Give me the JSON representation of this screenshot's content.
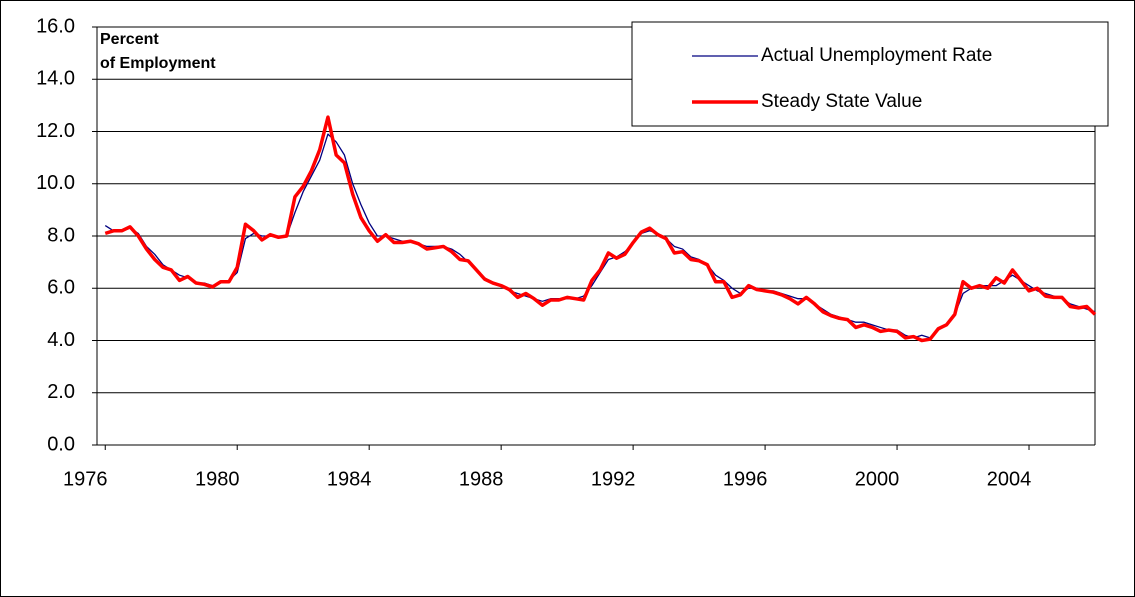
{
  "chart_data": {
    "type": "line",
    "ylabel": [
      "Percent",
      "of Employment"
    ],
    "x": [
      1976,
      1976.25,
      1976.5,
      1976.75,
      1977,
      1977.25,
      1977.5,
      1977.75,
      1978,
      1978.25,
      1978.5,
      1978.75,
      1979,
      1979.25,
      1979.5,
      1979.75,
      1980,
      1980.25,
      1980.5,
      1980.75,
      1981,
      1981.25,
      1981.5,
      1981.75,
      1982,
      1982.25,
      1982.5,
      1982.75,
      1983,
      1983.25,
      1983.5,
      1983.75,
      1984,
      1984.25,
      1984.5,
      1984.75,
      1985,
      1985.25,
      1985.5,
      1985.75,
      1986,
      1986.25,
      1986.5,
      1986.75,
      1987,
      1987.25,
      1987.5,
      1987.75,
      1988,
      1988.25,
      1988.5,
      1988.75,
      1989,
      1989.25,
      1989.5,
      1989.75,
      1990,
      1990.25,
      1990.5,
      1990.75,
      1991,
      1991.25,
      1991.5,
      1991.75,
      1992,
      1992.25,
      1992.5,
      1992.75,
      1993,
      1993.25,
      1993.5,
      1993.75,
      1994,
      1994.25,
      1994.5,
      1994.75,
      1995,
      1995.25,
      1995.5,
      1995.75,
      1996,
      1996.25,
      1996.5,
      1996.75,
      1997,
      1997.25,
      1997.5,
      1997.75,
      1998,
      1998.25,
      1998.5,
      1998.75,
      1999,
      1999.25,
      1999.5,
      1999.75,
      2000,
      2000.25,
      2000.5,
      2000.75,
      2001,
      2001.25,
      2001.5,
      2001.75,
      2002,
      2002.25,
      2002.5,
      2002.75,
      2003,
      2003.25,
      2003.5,
      2003.75,
      2004,
      2004.25,
      2004.5,
      2004.75,
      2005,
      2005.25,
      2005.5,
      2005.75,
      2006
    ],
    "series": [
      {
        "name": "Actual Unemployment Rate",
        "color": "#000080",
        "width": 1.3,
        "values": [
          8.4,
          8.2,
          8.2,
          8.3,
          8.1,
          7.6,
          7.3,
          6.9,
          6.7,
          6.5,
          6.4,
          6.2,
          6.2,
          6.1,
          6.2,
          6.3,
          6.6,
          7.9,
          8.1,
          8.0,
          8.0,
          8.0,
          8.0,
          8.9,
          9.7,
          10.3,
          10.9,
          11.9,
          11.6,
          11.1,
          10.0,
          9.2,
          8.5,
          8.0,
          8.0,
          7.9,
          7.8,
          7.8,
          7.7,
          7.6,
          7.6,
          7.6,
          7.5,
          7.3,
          7.0,
          6.7,
          6.4,
          6.2,
          6.1,
          5.9,
          5.8,
          5.7,
          5.6,
          5.5,
          5.6,
          5.6,
          5.6,
          5.6,
          5.7,
          6.1,
          6.6,
          7.1,
          7.2,
          7.4,
          7.7,
          8.1,
          8.2,
          8.1,
          7.9,
          7.6,
          7.5,
          7.2,
          7.1,
          6.9,
          6.5,
          6.3,
          6.0,
          5.8,
          6.0,
          6.0,
          5.9,
          5.9,
          5.8,
          5.7,
          5.6,
          5.6,
          5.4,
          5.2,
          5.0,
          4.9,
          4.8,
          4.7,
          4.7,
          4.6,
          4.5,
          4.4,
          4.4,
          4.2,
          4.1,
          4.2,
          4.1,
          4.4,
          4.6,
          5.0,
          5.8,
          6.0,
          6.1,
          6.1,
          6.1,
          6.3,
          6.5,
          6.3,
          6.1,
          5.9,
          5.8,
          5.7,
          5.6,
          5.4,
          5.3,
          5.2,
          5.1
        ]
      },
      {
        "name": "Steady State Value",
        "color": "#ff0000",
        "width": 3.5,
        "values": [
          8.1,
          8.2,
          8.2,
          8.35,
          8.0,
          7.5,
          7.1,
          6.8,
          6.7,
          6.3,
          6.45,
          6.2,
          6.15,
          6.05,
          6.25,
          6.25,
          6.8,
          8.45,
          8.2,
          7.85,
          8.05,
          7.95,
          8.0,
          9.5,
          9.9,
          10.5,
          11.3,
          12.55,
          11.1,
          10.8,
          9.6,
          8.7,
          8.2,
          7.8,
          8.05,
          7.75,
          7.75,
          7.8,
          7.7,
          7.5,
          7.55,
          7.6,
          7.4,
          7.1,
          7.05,
          6.7,
          6.35,
          6.2,
          6.1,
          5.95,
          5.65,
          5.8,
          5.6,
          5.35,
          5.55,
          5.55,
          5.65,
          5.6,
          5.55,
          6.3,
          6.7,
          7.35,
          7.15,
          7.3,
          7.75,
          8.15,
          8.3,
          8.05,
          7.9,
          7.35,
          7.4,
          7.1,
          7.05,
          6.9,
          6.25,
          6.25,
          5.65,
          5.75,
          6.1,
          5.95,
          5.9,
          5.85,
          5.75,
          5.6,
          5.4,
          5.65,
          5.4,
          5.1,
          4.95,
          4.85,
          4.8,
          4.5,
          4.6,
          4.5,
          4.35,
          4.4,
          4.35,
          4.1,
          4.15,
          4.0,
          4.05,
          4.45,
          4.6,
          5.0,
          6.25,
          6.0,
          6.1,
          6.0,
          6.4,
          6.2,
          6.7,
          6.3,
          5.9,
          6.0,
          5.7,
          5.65,
          5.65,
          5.3,
          5.25,
          5.3,
          5.0
        ]
      }
    ],
    "xlim": [
      1975.75,
      2006
    ],
    "xticks": [
      1976,
      1980,
      1984,
      1988,
      1992,
      1996,
      2000,
      2004
    ],
    "ylim": [
      0,
      16
    ],
    "yticks": [
      {
        "value": 0,
        "label": "0.0"
      },
      {
        "value": 2,
        "label": "2.0"
      },
      {
        "value": 4,
        "label": "4.0"
      },
      {
        "value": 6,
        "label": "6.0"
      },
      {
        "value": 8,
        "label": "8.0"
      },
      {
        "value": 10,
        "label": "10.0"
      },
      {
        "value": 12,
        "label": "12.0"
      },
      {
        "value": 14,
        "label": "14.0"
      },
      {
        "value": 16,
        "label": "16.0"
      }
    ],
    "grid": true,
    "legend": "top-right"
  }
}
